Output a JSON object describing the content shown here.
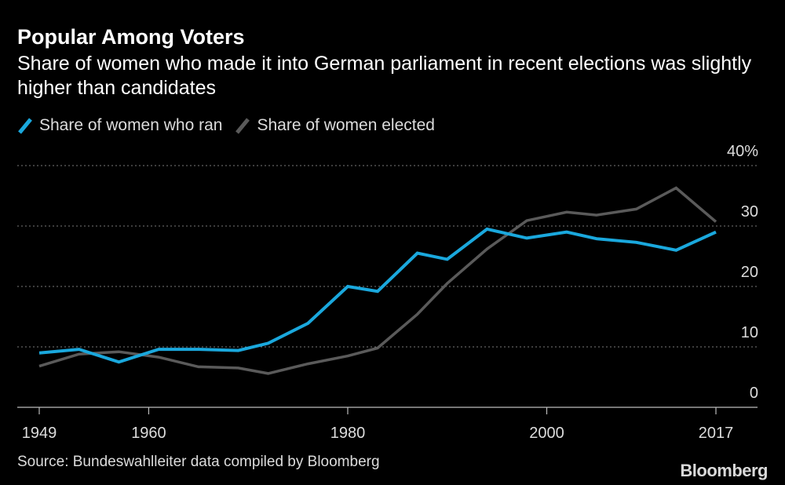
{
  "title": "Popular Among Voters",
  "subtitle": "Share of women who made it into German parliament in recent elections was slightly higher than candidates",
  "source": "Source: Bundeswahlleiter data compiled by Bloomberg",
  "brand": "Bloomberg",
  "legend": [
    {
      "label": "Share of women who ran",
      "color": "#1aa8dd"
    },
    {
      "label": "Share of women elected",
      "color": "#5a5a5a"
    }
  ],
  "chart_data": {
    "type": "line",
    "title": "Popular Among Voters",
    "xlabel": "",
    "ylabel": "",
    "x_ticks": [
      "1949",
      "1960",
      "1980",
      "2000",
      "2017"
    ],
    "x_tick_values": [
      1949,
      1960,
      1980,
      2000,
      2017
    ],
    "y_ticks": [
      "40%",
      "30",
      "20",
      "10",
      "0"
    ],
    "y_tick_values": [
      40,
      30,
      20,
      10,
      0
    ],
    "xlim": [
      1949,
      2017
    ],
    "ylim": [
      0,
      40
    ],
    "grid": true,
    "legend_position": "top-left",
    "series": [
      {
        "name": "Share of women who ran",
        "color": "#1aa8dd",
        "x": [
          1949,
          1953,
          1957,
          1961,
          1965,
          1969,
          1972,
          1976,
          1980,
          1983,
          1987,
          1990,
          1994,
          1998,
          2002,
          2005,
          2009,
          2013,
          2017
        ],
        "y": [
          9.0,
          9.6,
          7.5,
          9.6,
          9.6,
          9.4,
          10.6,
          13.9,
          20.0,
          19.2,
          25.5,
          24.5,
          29.5,
          28.0,
          29.0,
          27.9,
          27.3,
          26.0,
          29.0
        ]
      },
      {
        "name": "Share of women elected",
        "color": "#5a5a5a",
        "x": [
          1949,
          1953,
          1957,
          1961,
          1965,
          1969,
          1972,
          1976,
          1980,
          1983,
          1987,
          1990,
          1994,
          1998,
          2002,
          2005,
          2009,
          2013,
          2017
        ],
        "y": [
          6.8,
          8.8,
          9.2,
          8.3,
          6.7,
          6.5,
          5.6,
          7.2,
          8.5,
          9.8,
          15.4,
          20.5,
          26.2,
          30.9,
          32.3,
          31.8,
          32.8,
          36.3,
          30.7
        ]
      }
    ]
  }
}
